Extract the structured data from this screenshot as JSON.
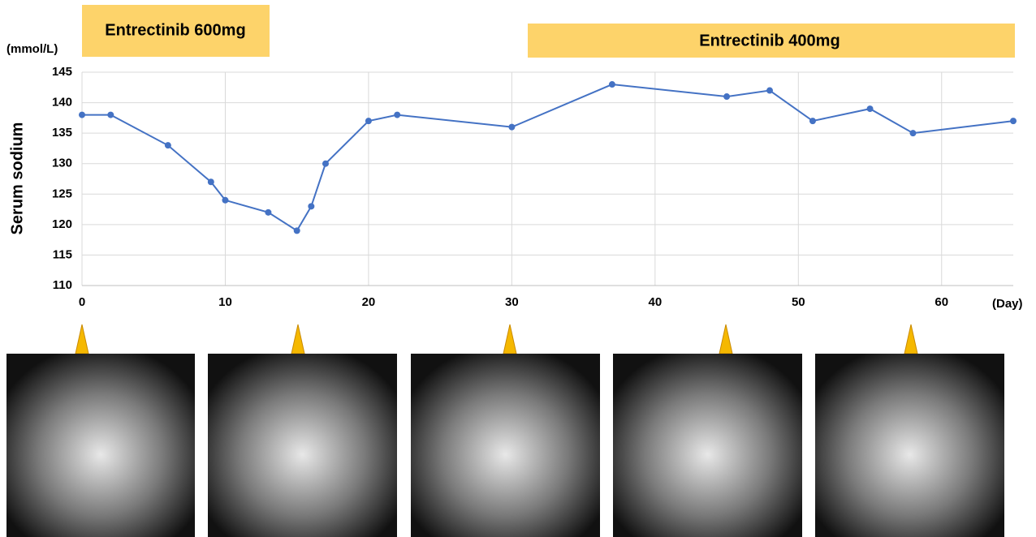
{
  "chart_data": {
    "type": "line",
    "annotations": [
      "Entrectinib 600mg",
      "Entrectinib 400mg"
    ],
    "y_unit": "(mmol/L)",
    "y_label": "Serum sodium",
    "x_unit": "(Day)",
    "x": [
      0,
      2,
      6,
      9,
      10,
      13,
      15,
      16,
      17,
      20,
      22,
      30,
      37,
      45,
      48,
      51,
      55,
      58,
      65
    ],
    "series": [
      {
        "color": "#4472c4",
        "values": [
          138,
          138,
          133,
          127,
          124,
          122,
          119,
          123,
          130,
          137,
          138,
          136,
          143,
          141,
          142,
          137,
          139,
          135,
          137
        ]
      }
    ],
    "xlim": [
      0,
      65
    ],
    "xticks": [
      0,
      10,
      20,
      30,
      40,
      50,
      60
    ],
    "ylim": [
      110,
      145
    ],
    "yticks": [
      110,
      115,
      120,
      125,
      130,
      135,
      140,
      145
    ],
    "grid": true
  }
}
